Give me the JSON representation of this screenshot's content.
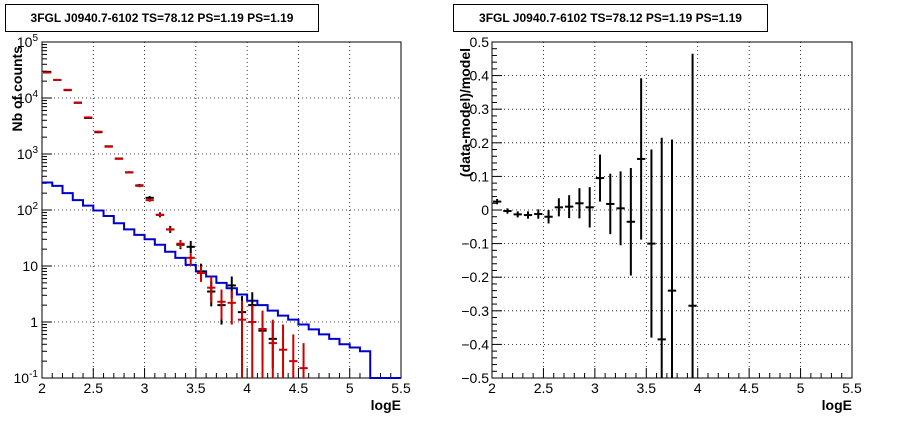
{
  "chart_data": [
    {
      "type": "step-histogram",
      "title": "3FGL J0940.7-6102 TS=78.12 PS=1.19 PS=1.19",
      "xlabel": "logE",
      "ylabel": "Nb of counts",
      "xlim": [
        2,
        5.5
      ],
      "ylim": [
        0.1,
        100000
      ],
      "yscale": "log",
      "grid": true,
      "x_ticks": [
        "2",
        "2.5",
        "3",
        "3.5",
        "4",
        "4.5",
        "5",
        "5.5"
      ],
      "y_ticks": [
        {
          "v": 0.1,
          "base": "10",
          "exp": "-1"
        },
        {
          "v": 1,
          "base": "1",
          "exp": ""
        },
        {
          "v": 10,
          "base": "10",
          "exp": ""
        },
        {
          "v": 100,
          "base": "10",
          "exp": "2"
        },
        {
          "v": 1000,
          "base": "10",
          "exp": "3"
        },
        {
          "v": 10000,
          "base": "10",
          "exp": "4"
        },
        {
          "v": 100000,
          "base": "10",
          "exp": "5"
        }
      ],
      "bin_edges": [
        2.0,
        2.1,
        2.2,
        2.3,
        2.4,
        2.5,
        2.6,
        2.7,
        2.8,
        2.9,
        3.0,
        3.1,
        3.2,
        3.3,
        3.4,
        3.5,
        3.6,
        3.7,
        3.8,
        3.9,
        4.0,
        4.1,
        4.2,
        4.3,
        4.4,
        4.5,
        4.6,
        4.7,
        4.8,
        4.9,
        5.0,
        5.1,
        5.2,
        5.3,
        5.4,
        5.5
      ],
      "series": [
        {
          "role": "model-total",
          "color": "#cc0000",
          "x": [
            2.05,
            2.15,
            2.25,
            2.35,
            2.45,
            2.55,
            2.65,
            2.75,
            2.85,
            2.95,
            3.05,
            3.15,
            3.25,
            3.35,
            3.45,
            3.55,
            3.65,
            3.75,
            3.85,
            3.95,
            4.05,
            4.15,
            4.25,
            4.35,
            4.45,
            4.55
          ],
          "y": [
            28500,
            21000,
            14000,
            8300,
            4500,
            2500,
            1350,
            820,
            470,
            270,
            150,
            82,
            45,
            25,
            14,
            7.5,
            4.1,
            2.3,
            2.2,
            1.1,
            1.0,
            0.75,
            0.42,
            0.32,
            0.2,
            0.15
          ],
          "ylo": [
            28000,
            20600,
            13700,
            8100,
            4300,
            2400,
            1300,
            790,
            450,
            255,
            140,
            76,
            41,
            21,
            10,
            5.2,
            2.2,
            1.1,
            0.9,
            0.1,
            0.1,
            0.1,
            0.1,
            0.1,
            0.1,
            0.1
          ],
          "yhi": [
            29000,
            21400,
            14300,
            8500,
            4700,
            2600,
            1400,
            850,
            490,
            285,
            160,
            88,
            49,
            29,
            17,
            10,
            6.5,
            3.8,
            3.6,
            2.4,
            2.0,
            1.6,
            1.1,
            0.9,
            0.6,
            0.42
          ]
        },
        {
          "role": "data",
          "color": "#000000",
          "x": [
            2.05,
            2.15,
            2.25,
            2.35,
            2.45,
            2.55,
            2.65,
            2.75,
            2.85,
            2.95,
            3.05,
            3.15,
            3.25,
            3.35,
            3.45,
            3.55,
            3.65,
            3.75,
            3.85,
            3.95,
            4.05,
            4.15,
            4.25
          ],
          "y": [
            29300,
            21000,
            13800,
            8200,
            4400,
            2450,
            1370,
            830,
            470,
            275,
            165,
            82,
            45,
            24,
            22,
            8,
            3.5,
            2.0,
            4.5,
            1.5,
            2.0,
            0.7,
            0.5
          ],
          "ylo": [
            28800,
            20600,
            13500,
            8000,
            4250,
            2350,
            1320,
            800,
            450,
            258,
            152,
            74,
            39,
            20,
            17,
            5.5,
            1.9,
            0.9,
            2.7,
            0.5,
            0.9,
            0.2,
            0.15
          ],
          "yhi": [
            29800,
            21400,
            14100,
            8400,
            4550,
            2550,
            1420,
            860,
            490,
            292,
            178,
            91,
            52,
            29,
            28,
            11,
            5.4,
            3.4,
            6.5,
            2.9,
            3.4,
            1.4,
            1.0
          ]
        },
        {
          "role": "component-step",
          "color": "#0000cc",
          "step_values": [
            310,
            270,
            200,
            150,
            120,
            98,
            78,
            58,
            45,
            36,
            30,
            24,
            18,
            14,
            10.5,
            8,
            6.5,
            5,
            4,
            3.1,
            2.4,
            2,
            1.6,
            1.3,
            1.1,
            0.9,
            0.74,
            0.6,
            0.5,
            0.4,
            0.35,
            0.3,
            0.1,
            0.1,
            0.1
          ]
        }
      ]
    },
    {
      "type": "scatter-errorbars",
      "title": "3FGL J0940.7-6102 TS=78.12 PS=1.19 PS=1.19",
      "xlabel": "logE",
      "ylabel": "(data-model)/model",
      "xlim": [
        2,
        5.5
      ],
      "ylim": [
        -0.5,
        0.5
      ],
      "grid": true,
      "x_ticks": [
        "2",
        "2.5",
        "3",
        "3.5",
        "4",
        "4.5",
        "5",
        "5.5"
      ],
      "y_ticks": [
        "-0.5",
        "-0.4",
        "-0.3",
        "-0.2",
        "-0.1",
        "0",
        "0.1",
        "0.2",
        "0.3",
        "0.4",
        "0.5"
      ],
      "points": {
        "x": [
          2.05,
          2.15,
          2.25,
          2.35,
          2.45,
          2.55,
          2.65,
          2.75,
          2.85,
          2.95,
          3.05,
          3.15,
          3.25,
          3.35,
          3.45,
          3.55,
          3.65,
          3.75,
          3.95
        ],
        "y": [
          0.025,
          -0.003,
          -0.013,
          -0.015,
          -0.012,
          -0.02,
          0.008,
          0.01,
          0.02,
          0.008,
          0.095,
          0.018,
          0.005,
          -0.035,
          0.152,
          -0.1,
          -0.385,
          -0.24,
          -0.285
        ],
        "err": [
          0.008,
          0.008,
          0.009,
          0.011,
          0.014,
          0.02,
          0.027,
          0.034,
          0.045,
          0.06,
          0.07,
          0.09,
          0.11,
          0.16,
          0.24,
          0.28,
          0.6,
          0.45,
          0.75
        ]
      }
    }
  ]
}
